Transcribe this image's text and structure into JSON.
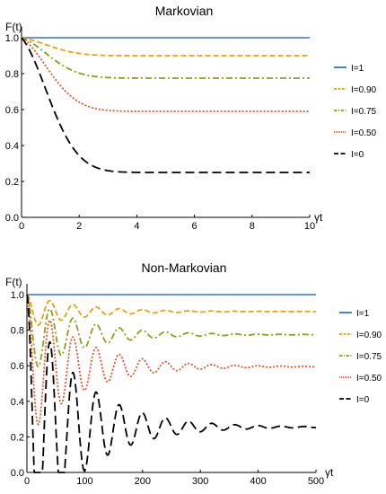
{
  "chart_data": [
    {
      "type": "line",
      "title": "Markovian",
      "ylabel": "F(t)",
      "xlabel": "γt",
      "xlim": [
        0,
        10
      ],
      "ylim": [
        0,
        1
      ],
      "xticks": [
        "0",
        "2",
        "4",
        "6",
        "8",
        "10"
      ],
      "yticks": [
        "0.0",
        "0.2",
        "0.4",
        "0.6",
        "0.8",
        "1.0"
      ],
      "legend_position": "right",
      "series": [
        {
          "name": "I=1",
          "color": "#3b73b9",
          "dash": "solid",
          "final": 1.0,
          "rate": 0.0
        },
        {
          "name": "I=0.90",
          "color": "#e8a21a",
          "dash": "6,3",
          "final": 0.9,
          "rate": 0.8
        },
        {
          "name": "I=0.75",
          "color": "#8aa01f",
          "dash": "7,3,2,3",
          "final": 0.775,
          "rate": 0.8
        },
        {
          "name": "I=0.50",
          "color": "#e2552d",
          "dash": "2,2",
          "final": 0.59,
          "rate": 0.8
        },
        {
          "name": "I=0",
          "color": "#000000",
          "dash": "10,5",
          "final": 0.25,
          "rate": 0.8
        }
      ]
    },
    {
      "type": "line",
      "title": "Non-Markovian",
      "ylabel": "F(t)",
      "xlabel": "γt",
      "xlim": [
        0,
        500
      ],
      "ylim": [
        0,
        1
      ],
      "xticks": [
        "0",
        "100",
        "200",
        "300",
        "400",
        "500"
      ],
      "yticks": [
        "0.0",
        "0.2",
        "0.4",
        "0.6",
        "0.8",
        "1.0"
      ],
      "legend_position": "right",
      "series": [
        {
          "name": "I=1",
          "color": "#3b73b9",
          "dash": "solid",
          "final": 1.0,
          "period": 40,
          "decay": 90
        },
        {
          "name": "I=0.90",
          "color": "#e8a21a",
          "dash": "6,3",
          "final": 0.905,
          "period": 40,
          "decay": 90
        },
        {
          "name": "I=0.75",
          "color": "#8aa01f",
          "dash": "7,3,2,3",
          "final": 0.775,
          "period": 40,
          "decay": 90
        },
        {
          "name": "I=0.50",
          "color": "#e2552d",
          "dash": "2,2",
          "final": 0.595,
          "period": 40,
          "decay": 90
        },
        {
          "name": "I=0",
          "color": "#000000",
          "dash": "10,5",
          "final": 0.255,
          "period": 40,
          "decay": 90
        }
      ]
    }
  ]
}
